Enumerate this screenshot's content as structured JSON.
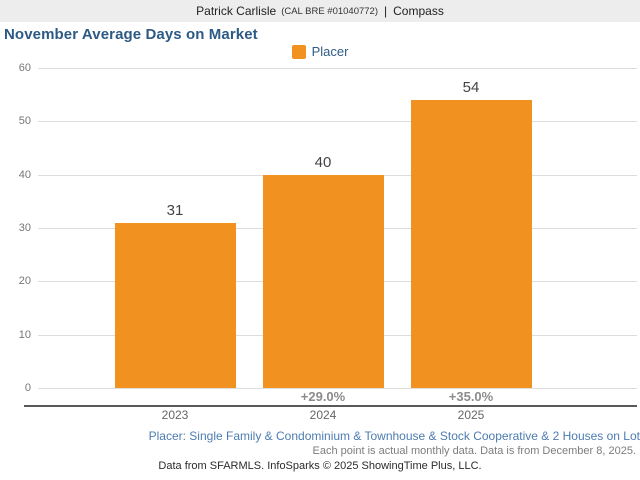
{
  "header": {
    "name": "Patrick Carlisle",
    "license": "(CAL BRE #01040772)",
    "separator": "|",
    "company": "Compass"
  },
  "title": "November Average Days on Market",
  "legend": {
    "label": "Placer",
    "swatch_color": "#f1911f"
  },
  "chart_data": {
    "type": "bar",
    "title": "November Average Days on Market",
    "series_name": "Placer",
    "categories": [
      "2023",
      "2024",
      "2025"
    ],
    "values": [
      31,
      40,
      54
    ],
    "value_labels": [
      "31",
      "40",
      "54"
    ],
    "pct_change_labels": [
      "",
      "+29.0%",
      "+35.0%"
    ],
    "bar_color": "#f1911f",
    "ylabel": "",
    "xlabel": "",
    "ylim": [
      0,
      60
    ],
    "yticks": [
      0,
      10,
      20,
      30,
      40,
      50,
      60
    ],
    "grid": true,
    "legend_position": "top-center"
  },
  "footnotes": {
    "segment": "Placer: Single Family & Condominium & Townhouse & Stock Cooperative & 2 Houses on Lot",
    "data_note": "Each point is actual monthly data. Data is from December 8, 2025.",
    "attribution": "Data from SFARMLS. InfoSparks © 2025 ShowingTime Plus, LLC."
  }
}
